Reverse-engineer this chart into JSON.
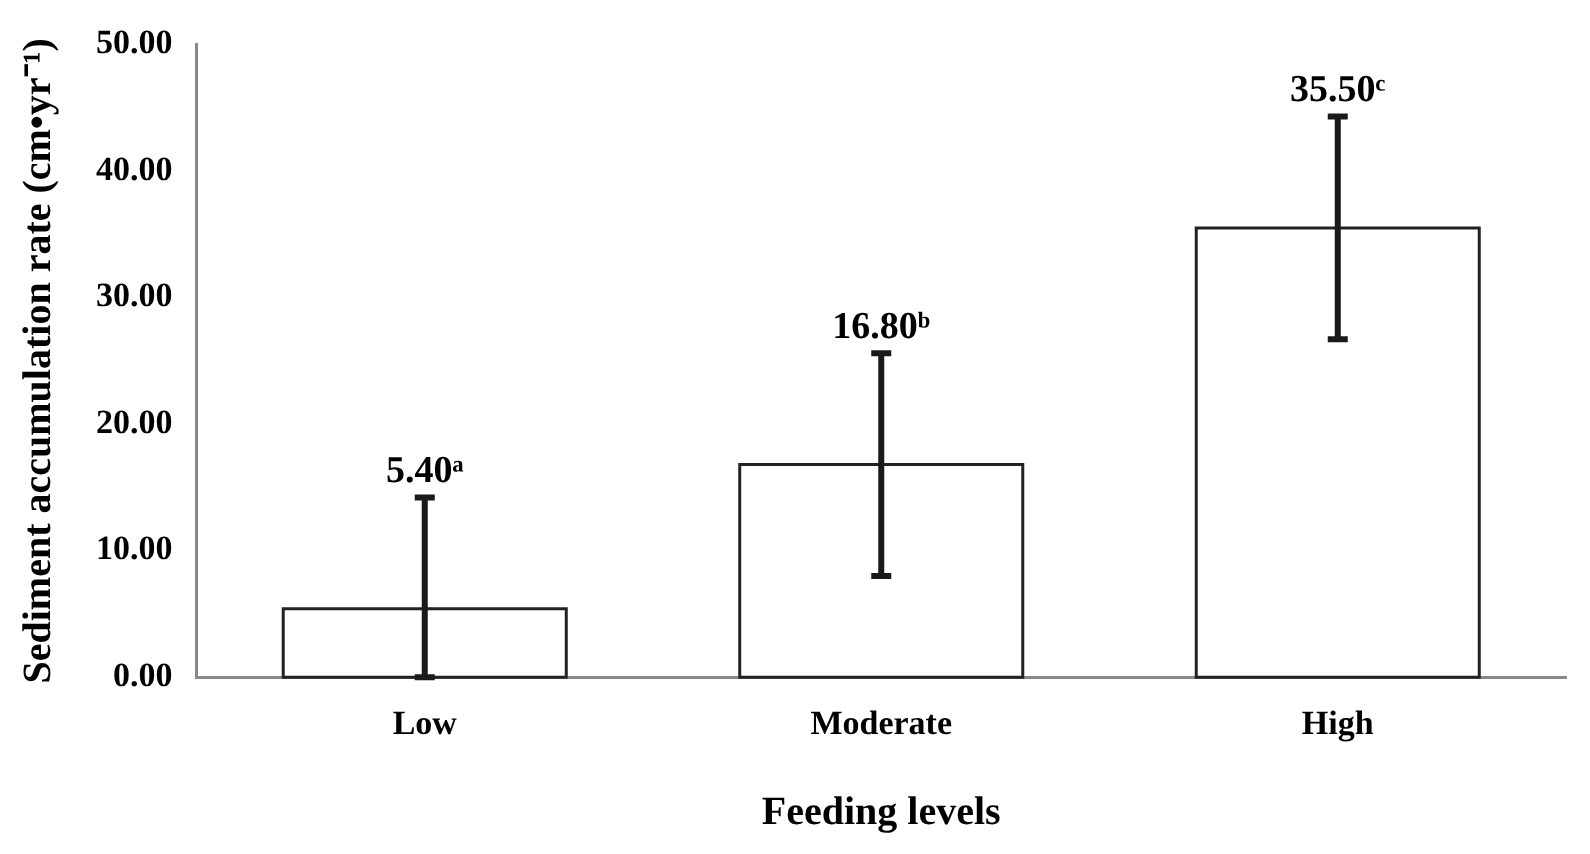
{
  "chart_data": {
    "type": "bar",
    "xlabel": "Feeding levels",
    "ylabel": "Sediment accumulation rate (cm•yr⁻¹)",
    "categories": [
      "Low",
      "Moderate",
      "High"
    ],
    "values": [
      5.4,
      16.8,
      35.5
    ],
    "colors": [
      "#ffffff",
      "#ffffff",
      "#ffffff"
    ],
    "errors": [
      [
        0,
        14.2
      ],
      8.8,
      8.8
    ],
    "value_labels": [
      "5.40ᵃ",
      "16.80ᵇ",
      "35.50ᶜ"
    ],
    "ylim": [
      0,
      50
    ],
    "yticks": [
      {
        "value": 0,
        "label": "0.00"
      },
      {
        "value": 10,
        "label": "10.00"
      },
      {
        "value": 20,
        "label": "20.00"
      },
      {
        "value": 30,
        "label": "30.00"
      },
      {
        "value": 40,
        "label": "40.00"
      },
      {
        "value": 50,
        "label": "50.00"
      }
    ],
    "grid": false,
    "legend": false
  }
}
